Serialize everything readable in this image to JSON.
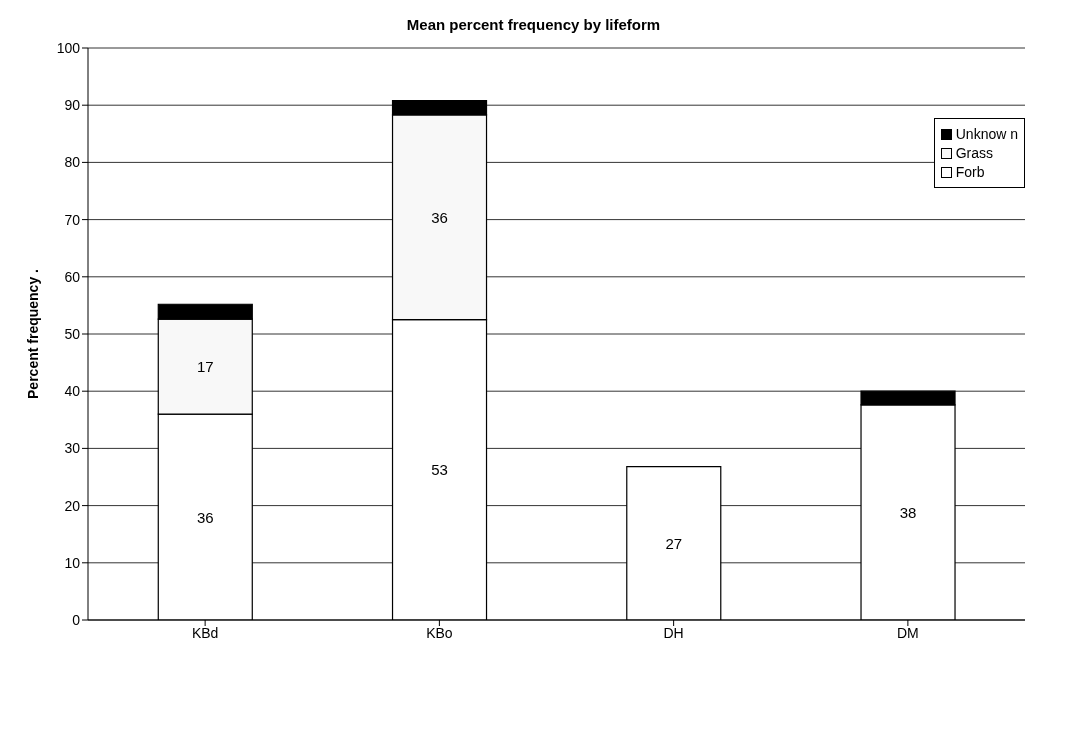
{
  "chart_data": {
    "type": "bar",
    "title": "Mean percent frequency by lifeform",
    "ylabel": "Percent frequency          .",
    "categories": [
      "KBd",
      "KBo",
      "DH",
      "DM"
    ],
    "stacked": true,
    "series": [
      {
        "name": "Forb",
        "color": "#ffffff",
        "values": [
          36,
          52.5,
          26.8,
          37.6
        ],
        "value_labels": [
          "36",
          "53",
          "27",
          "38"
        ]
      },
      {
        "name": "Grass",
        "color": "#f8f8f8",
        "values": [
          16.6,
          35.8,
          0,
          0
        ],
        "value_labels": [
          "17",
          "36",
          null,
          null
        ]
      },
      {
        "name": "Unknow n",
        "color": "#000000",
        "values": [
          2.6,
          2.5,
          0,
          2.4
        ],
        "value_labels": [
          null,
          null,
          null,
          null
        ]
      }
    ],
    "ylim": [
      0,
      100
    ],
    "yticks": [
      0,
      10,
      20,
      30,
      40,
      50,
      60,
      70,
      80,
      90,
      100
    ],
    "grid": "y",
    "legend": "top right"
  }
}
